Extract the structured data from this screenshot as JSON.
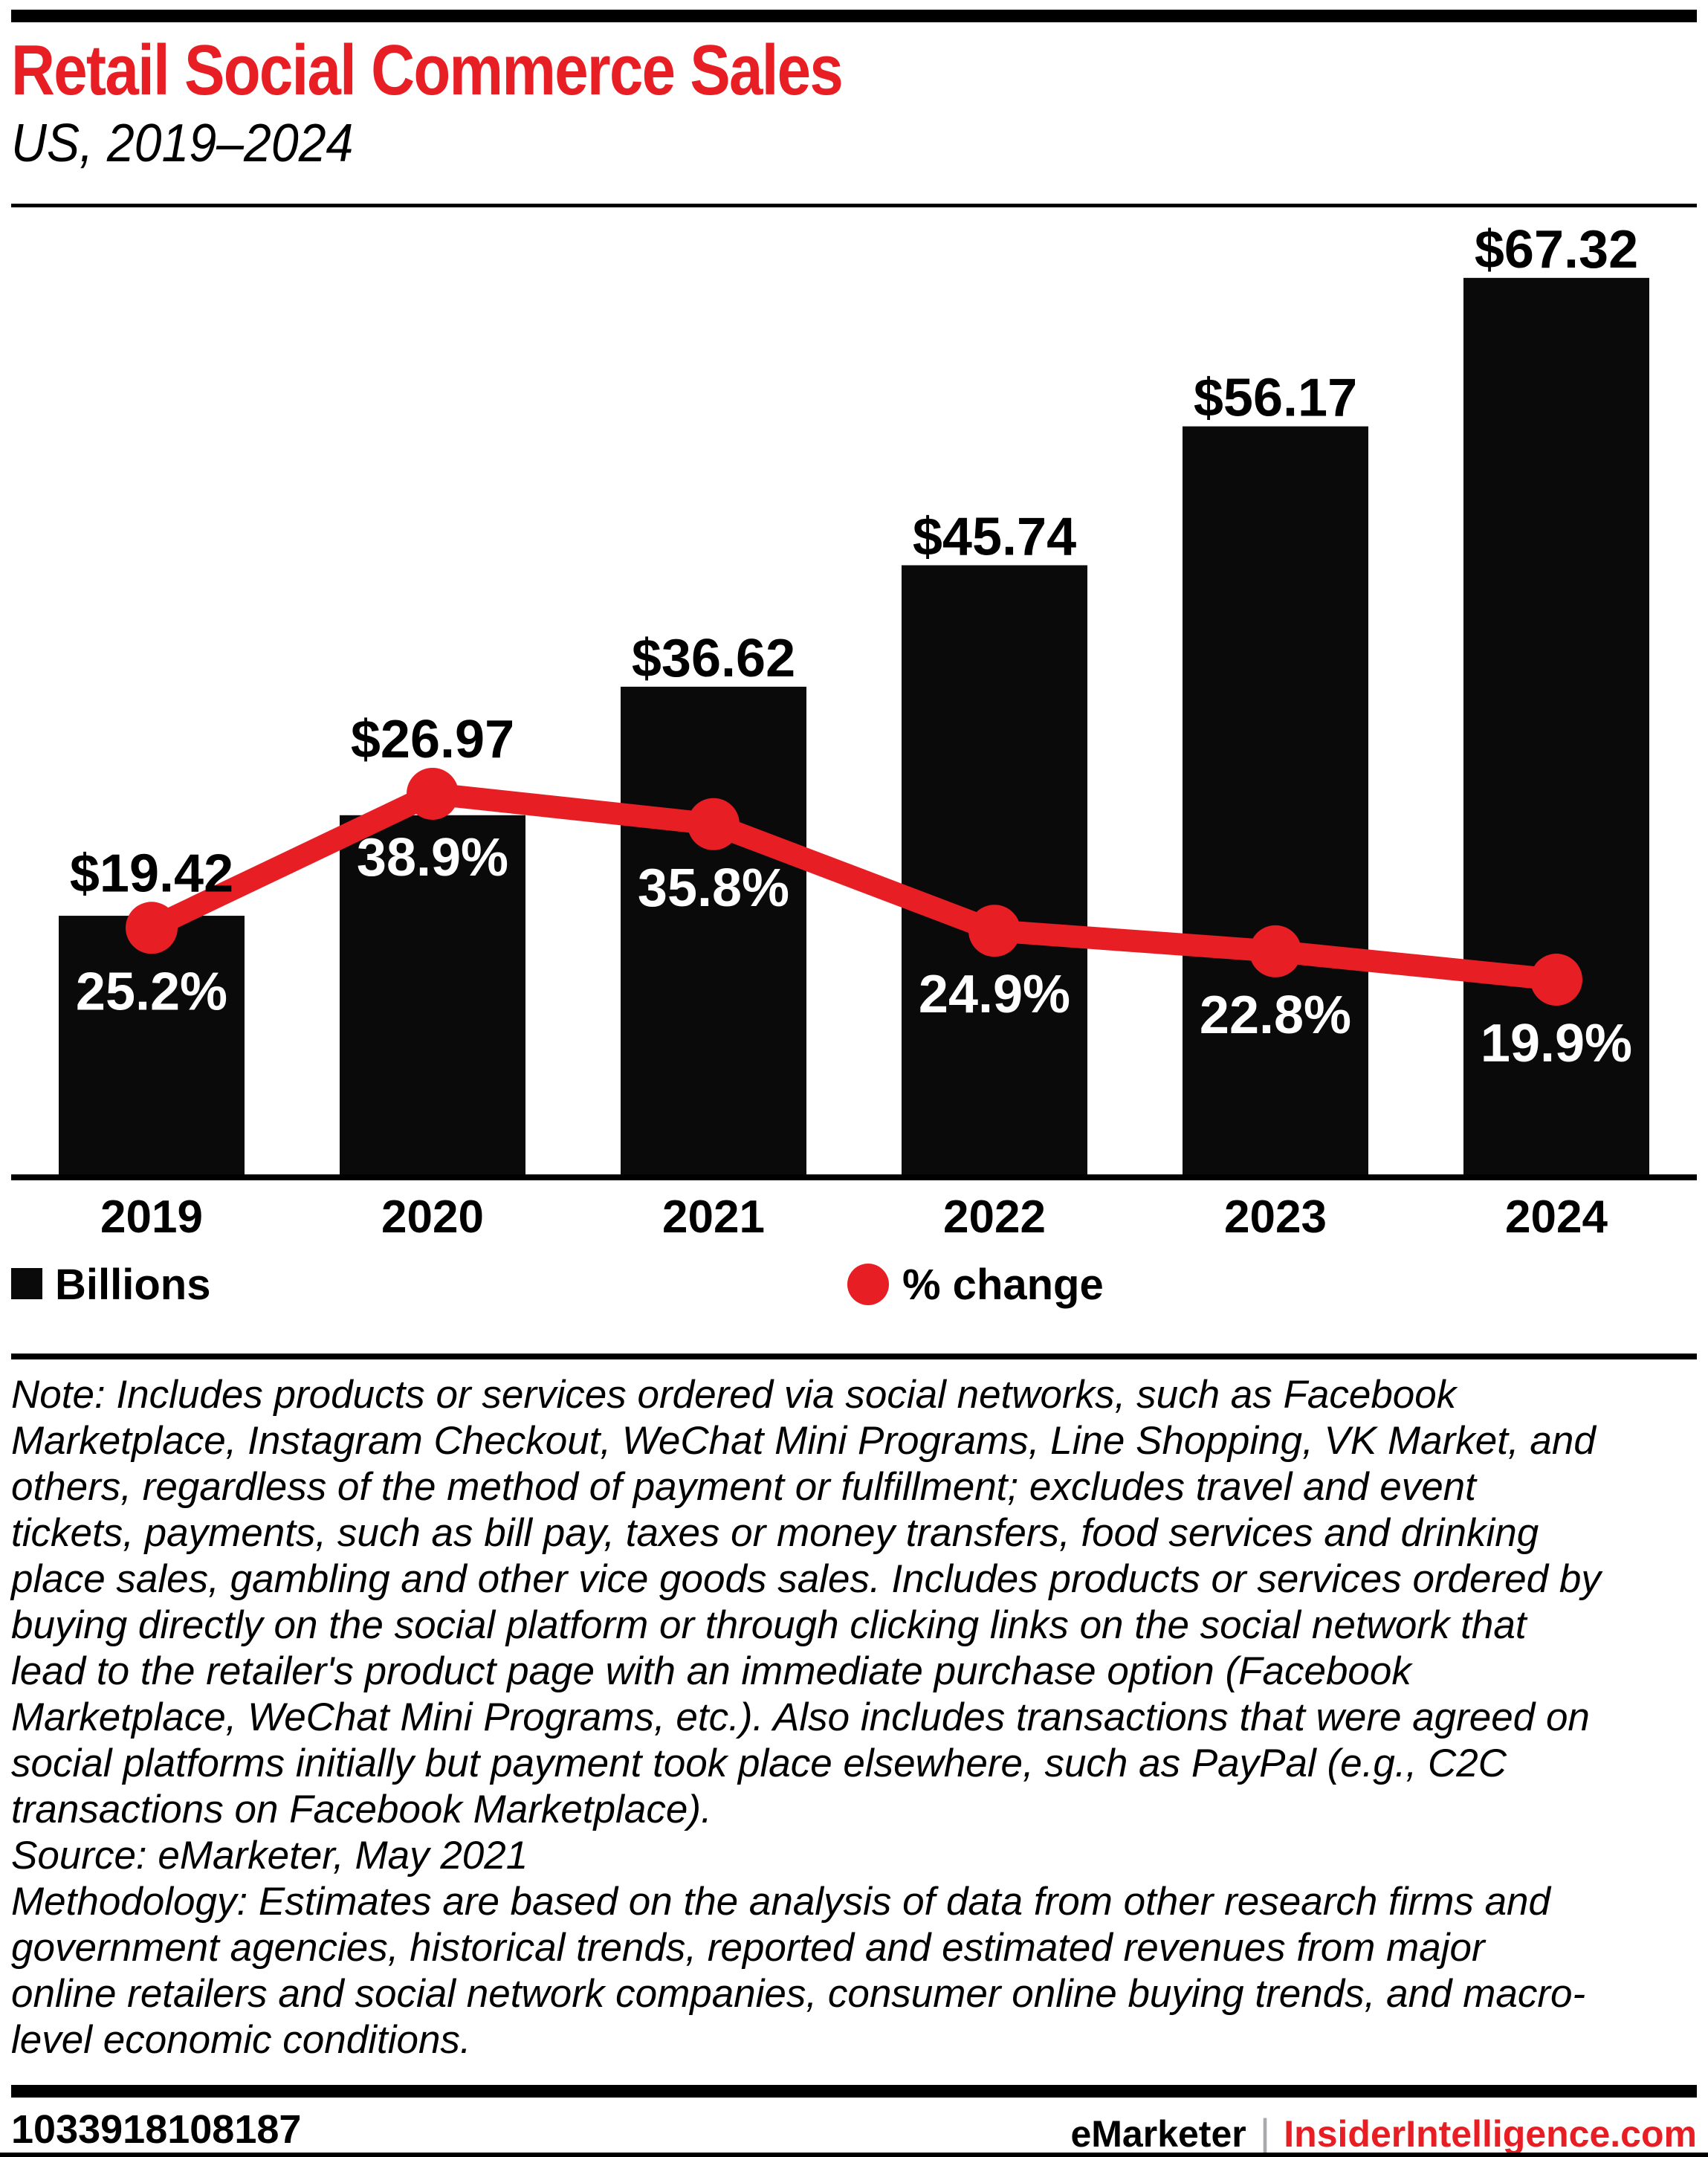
{
  "colors": {
    "red": "#e81e25",
    "bar_black": "#0a0a0a",
    "pct_label": "#ffffff",
    "pipe_gray": "#a7a9ac"
  },
  "chart_data": {
    "type": "combo",
    "title": "Retail Social Commerce Sales",
    "subtitle": "US, 2019–2024",
    "categories": [
      "2019",
      "2020",
      "2021",
      "2022",
      "2023",
      "2024"
    ],
    "series": [
      {
        "name": "Billions",
        "type": "bar",
        "color": "#0a0a0a",
        "values": [
          19.42,
          26.97,
          36.62,
          45.74,
          56.17,
          67.32
        ],
        "labels": [
          "$19.42",
          "$26.97",
          "$36.62",
          "$45.74",
          "$56.17",
          "$67.32"
        ]
      },
      {
        "name": "% change",
        "type": "line",
        "color": "#e81e25",
        "values": [
          25.2,
          38.9,
          35.8,
          24.9,
          22.8,
          19.9
        ],
        "labels": [
          "25.2%",
          "38.9%",
          "35.8%",
          "24.9%",
          "22.8%",
          "19.9%"
        ]
      }
    ],
    "bar_axis": {
      "min": 0,
      "max": 72,
      "unit": "US$ billions"
    },
    "line_axis": {
      "min": 0,
      "max": 98,
      "unit": "%"
    },
    "grid": false,
    "legend_position": "bottom",
    "legend": [
      {
        "label": "Billions",
        "swatch": "square",
        "color": "#0a0a0a"
      },
      {
        "label": "% change",
        "swatch": "circle",
        "color": "#e81e25"
      }
    ]
  },
  "notes": {
    "note_lines": [
      "Note: Includes products or services ordered via social networks, such as Facebook",
      "Marketplace, Instagram Checkout, WeChat Mini Programs, Line Shopping, VK Market, and",
      "others, regardless of the method of payment or fulfillment; excludes travel and event",
      "tickets, payments, such as bill pay, taxes or money transfers, food services and drinking",
      "place sales, gambling and other vice goods sales. Includes products or services ordered by",
      "buying directly on the social platform or through clicking links on the social network that",
      "lead to the retailer's product page with an immediate purchase option (Facebook",
      "Marketplace, WeChat Mini Programs, etc.). Also includes transactions that were agreed on",
      "social platforms initially but payment took place elsewhere, such as PayPal (e.g., C2C",
      "transactions on Facebook Marketplace)."
    ],
    "source": "Source: eMarketer, May 2021",
    "methodology_lines": [
      "Methodology: Estimates are based on the analysis of data from other research firms and",
      "government agencies, historical trends, reported and estimated revenues from major",
      "online retailers and social network companies, consumer online buying trends, and macro-",
      "level economic conditions."
    ]
  },
  "footer": {
    "id": "1033918108187",
    "brand": "eMarketer",
    "separator": "|",
    "site": "InsiderIntelligence.com"
  }
}
